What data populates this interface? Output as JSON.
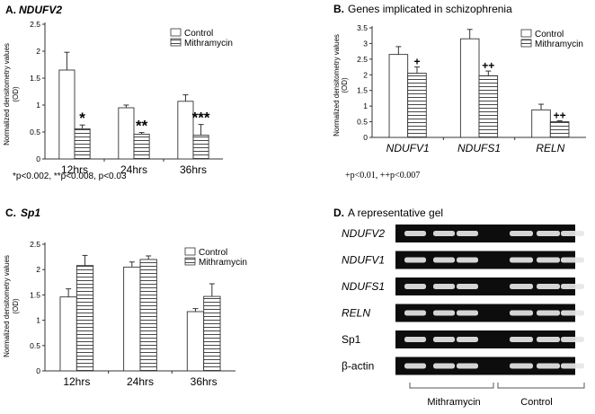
{
  "colors": {
    "control": "#ffffff",
    "mithramycin": "#ffffff",
    "stroke": "#333333",
    "gel_bg": "#0d0d0d",
    "band": "#e6e6e6"
  },
  "panel_a": {
    "letter": "A.",
    "title": "NDUFV2",
    "ylabel": "Normalized densitometry values",
    "yunit": "(OD)",
    "footnote": "*p<0.002, **p<0.008, p<0.03"
  },
  "panel_b": {
    "letter": "B.",
    "title": "Genes implicated in schizophrenia",
    "ylabel": "Normalized densitometry values",
    "yunit": "(OD)",
    "footnote": "+p<0.01, ++p<0.007"
  },
  "panel_c": {
    "letter": "C.",
    "title": "Sp1",
    "ylabel": "Normalized densitometry values",
    "yunit": "(OD)"
  },
  "panel_d": {
    "letter": "D.",
    "title": "A representative gel",
    "lanes": [
      "NDUFV2",
      "NDUFV1",
      "NDUFS1",
      "RELN",
      "Sp1",
      "β-actin"
    ],
    "lane_italic": [
      true,
      true,
      true,
      true,
      false,
      false
    ],
    "group_labels": [
      "Mithramycin",
      "Control"
    ]
  },
  "chart_data": [
    {
      "type": "bar",
      "title": "NDUFV2",
      "categories": [
        "12hrs",
        "24hrs",
        "36hrs"
      ],
      "series": [
        {
          "name": "Control",
          "pattern": "open",
          "values": [
            1.65,
            0.95,
            1.07
          ],
          "errors": [
            0.33,
            0.05,
            0.12
          ]
        },
        {
          "name": "Mithramycin",
          "pattern": "horizontal-stripes",
          "values": [
            0.56,
            0.46,
            0.44
          ],
          "errors": [
            0.07,
            0.03,
            0.2
          ]
        }
      ],
      "annotations": [
        "*",
        "**",
        "***"
      ],
      "ylim": [
        0,
        2.5
      ],
      "yticks": [
        "0",
        "0.5",
        "1",
        "1.5",
        "2",
        "2.5"
      ],
      "legend": "top-right"
    },
    {
      "type": "bar",
      "title": "Genes implicated in schizophrenia",
      "categories": [
        "NDUFV1",
        "NDUFS1",
        "RELN"
      ],
      "series": [
        {
          "name": "Control",
          "pattern": "open",
          "values": [
            2.65,
            3.15,
            0.88
          ],
          "errors": [
            0.25,
            0.3,
            0.18
          ]
        },
        {
          "name": "Mithramycin",
          "pattern": "horizontal-stripes",
          "values": [
            2.05,
            1.97,
            0.5
          ],
          "errors": [
            0.2,
            0.15,
            0.03
          ]
        }
      ],
      "annotations": [
        "+",
        "++",
        "++"
      ],
      "ylim": [
        0,
        3.5
      ],
      "yticks": [
        "0",
        "0.5",
        "1",
        "1.5",
        "2",
        "2.5",
        "3",
        "3.5"
      ],
      "legend": "top-right"
    },
    {
      "type": "bar",
      "title": "Sp1",
      "categories": [
        "12hrs",
        "24hrs",
        "36hrs"
      ],
      "series": [
        {
          "name": "Control",
          "pattern": "open",
          "values": [
            1.46,
            2.05,
            1.17
          ],
          "errors": [
            0.16,
            0.1,
            0.06
          ]
        },
        {
          "name": "Mithramycin",
          "pattern": "horizontal-stripes",
          "values": [
            2.08,
            2.2,
            1.47
          ],
          "errors": [
            0.2,
            0.07,
            0.25
          ]
        }
      ],
      "annotations": [],
      "ylim": [
        0,
        2.5
      ],
      "yticks": [
        "0",
        "0.5",
        "1",
        "1.5",
        "2",
        "2.5"
      ],
      "legend": "top-right"
    }
  ]
}
